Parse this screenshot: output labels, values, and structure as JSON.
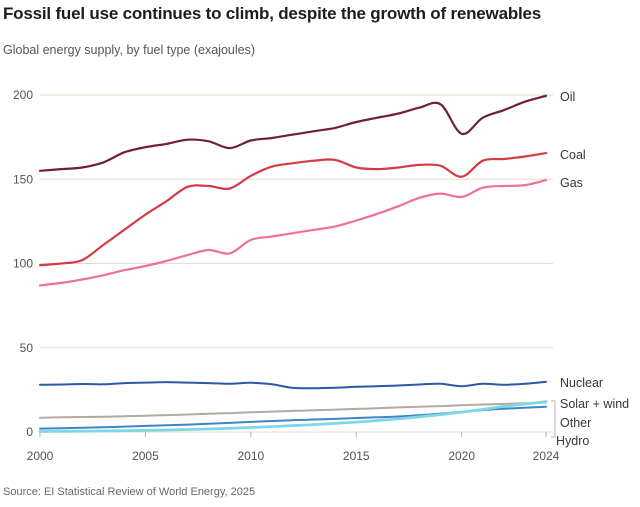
{
  "chart_data": {
    "type": "line",
    "title": "Fossil fuel use continues to climb, despite the growth of renewables",
    "subtitle": "Global energy supply, by fuel type (exajoules)",
    "source": "Source: EI Statistical Review of World Energy, 2025",
    "x": [
      2000,
      2001,
      2002,
      2003,
      2004,
      2005,
      2006,
      2007,
      2008,
      2009,
      2010,
      2011,
      2012,
      2013,
      2014,
      2015,
      2016,
      2017,
      2018,
      2019,
      2020,
      2021,
      2022,
      2023,
      2024
    ],
    "xticks": [
      2000,
      2005,
      2010,
      2015,
      2020,
      2024
    ],
    "yticks": [
      0,
      50,
      100,
      150,
      200
    ],
    "ylim": [
      0,
      200
    ],
    "grid": "horizontal",
    "legend_position": "right-end-labels",
    "series": [
      {
        "id": "oil",
        "name": "Oil",
        "color": "#731f3b",
        "width": 2.2,
        "values": [
          155,
          156,
          157,
          160,
          166,
          169,
          171,
          173.5,
          172.5,
          168.5,
          173,
          174.5,
          176.5,
          178.5,
          180.5,
          184,
          186.5,
          189,
          192.5,
          194.5,
          177,
          186.5,
          191,
          196,
          199.5
        ]
      },
      {
        "id": "coal",
        "name": "Coal",
        "color": "#d23c42",
        "width": 2.2,
        "values": [
          99,
          100,
          102,
          111,
          120,
          129,
          137,
          145.5,
          146,
          144.5,
          152,
          157.5,
          159.5,
          161,
          161.5,
          157,
          156,
          157,
          158.5,
          158,
          151.5,
          161,
          162,
          163.5,
          165.5
        ]
      },
      {
        "id": "gas",
        "name": "Gas",
        "color": "#ef7099",
        "width": 2.2,
        "values": [
          87,
          88.5,
          90.5,
          93,
          96,
          98.5,
          101.5,
          105,
          108,
          106,
          114,
          116,
          118,
          120,
          122,
          125.5,
          129.5,
          134,
          139,
          141.5,
          139.5,
          145,
          146,
          146.5,
          149.5
        ]
      },
      {
        "id": "nuclear",
        "name": "Nuclear",
        "color": "#2d57a7",
        "width": 2,
        "values": [
          28,
          28.2,
          28.5,
          28.3,
          29,
          29.3,
          29.6,
          29.3,
          29,
          28.6,
          29.2,
          28.3,
          26.2,
          26,
          26.3,
          26.8,
          27.2,
          27.6,
          28.2,
          28.6,
          27.2,
          28.6,
          28,
          28.6,
          29.8
        ]
      },
      {
        "id": "solar_wind",
        "name": "Solar + wind",
        "color": "#7ed7e6",
        "width": 2.8,
        "values": [
          0.3,
          0.4,
          0.5,
          0.6,
          0.8,
          1,
          1.2,
          1.5,
          1.8,
          2.2,
          2.7,
          3.2,
          3.8,
          4.4,
          5.1,
          5.9,
          6.8,
          7.8,
          9,
          10.3,
          11.8,
          13.4,
          15.2,
          16.6,
          18
        ]
      },
      {
        "id": "other",
        "name": "Other",
        "color": "#b2a9a0",
        "width": 2,
        "values": [
          8.5,
          8.7,
          8.9,
          9.1,
          9.4,
          9.7,
          10,
          10.4,
          10.8,
          11.2,
          11.7,
          12.1,
          12.5,
          12.9,
          13.3,
          13.7,
          14.1,
          14.6,
          15,
          15.4,
          15.9,
          16.3,
          16.7,
          17.1,
          17.5
        ]
      },
      {
        "id": "hydro",
        "name": "Hydro",
        "color": "#4085c6",
        "width": 2,
        "values": [
          2,
          2.2,
          2.5,
          2.8,
          3.2,
          3.6,
          4,
          4.4,
          4.9,
          5.4,
          6,
          6.5,
          7,
          7.4,
          7.8,
          8.3,
          8.7,
          9.2,
          10,
          10.9,
          12,
          13,
          13.8,
          14.4,
          15
        ]
      }
    ],
    "theme": {
      "background": "#ffffff",
      "gridline_color": "#e3dcd1",
      "tick_color": "#b7b1a8",
      "bracket_color": "#c6c0b7",
      "axis_text_color": "#57524c",
      "label_text_color": "#3b3731"
    }
  }
}
